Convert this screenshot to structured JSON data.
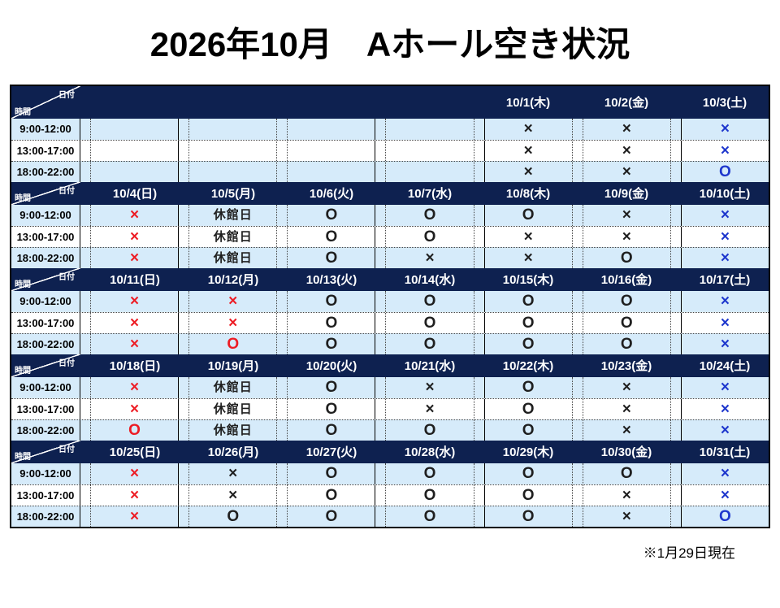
{
  "page": {
    "title": "2026年10月　Aホール空き状況",
    "footer_note": "※1月29日現在"
  },
  "corner": {
    "date_label": "日付",
    "time_label": "時間"
  },
  "time_slots": [
    "9:00-12:00",
    "13:00-17:00",
    "18:00-22:00"
  ],
  "symbols": {
    "unavailable": "×",
    "available": "O",
    "closed": "休館日"
  },
  "colors": {
    "header_navy": "#0e2150",
    "row_highlight": "#d6ebfa",
    "mark_black": "#1f1f1f",
    "mark_red": "#ed1c24",
    "mark_blue": "#1e37cd"
  },
  "weeks": [
    {
      "dates": [
        "",
        "",
        "",
        "",
        "10/1(木)",
        "10/2(金)",
        "10/3(土)"
      ],
      "rows": [
        [
          {
            "v": "",
            "c": "black"
          },
          {
            "v": "",
            "c": "black"
          },
          {
            "v": "",
            "c": "black"
          },
          {
            "v": "",
            "c": "black"
          },
          {
            "v": "×",
            "c": "black"
          },
          {
            "v": "×",
            "c": "black"
          },
          {
            "v": "×",
            "c": "blue"
          }
        ],
        [
          {
            "v": "",
            "c": "black"
          },
          {
            "v": "",
            "c": "black"
          },
          {
            "v": "",
            "c": "black"
          },
          {
            "v": "",
            "c": "black"
          },
          {
            "v": "×",
            "c": "black"
          },
          {
            "v": "×",
            "c": "black"
          },
          {
            "v": "×",
            "c": "blue"
          }
        ],
        [
          {
            "v": "",
            "c": "black"
          },
          {
            "v": "",
            "c": "black"
          },
          {
            "v": "",
            "c": "black"
          },
          {
            "v": "",
            "c": "black"
          },
          {
            "v": "×",
            "c": "black"
          },
          {
            "v": "×",
            "c": "black"
          },
          {
            "v": "O",
            "c": "blue"
          }
        ]
      ]
    },
    {
      "dates": [
        "10/4(日)",
        "10/5(月)",
        "10/6(火)",
        "10/7(水)",
        "10/8(木)",
        "10/9(金)",
        "10/10(土)"
      ],
      "rows": [
        [
          {
            "v": "×",
            "c": "red"
          },
          {
            "v": "休館日",
            "c": "black"
          },
          {
            "v": "O",
            "c": "black"
          },
          {
            "v": "O",
            "c": "black"
          },
          {
            "v": "O",
            "c": "black"
          },
          {
            "v": "×",
            "c": "black"
          },
          {
            "v": "×",
            "c": "blue"
          }
        ],
        [
          {
            "v": "×",
            "c": "red"
          },
          {
            "v": "休館日",
            "c": "black"
          },
          {
            "v": "O",
            "c": "black"
          },
          {
            "v": "O",
            "c": "black"
          },
          {
            "v": "×",
            "c": "black"
          },
          {
            "v": "×",
            "c": "black"
          },
          {
            "v": "×",
            "c": "blue"
          }
        ],
        [
          {
            "v": "×",
            "c": "red"
          },
          {
            "v": "休館日",
            "c": "black"
          },
          {
            "v": "O",
            "c": "black"
          },
          {
            "v": "×",
            "c": "black"
          },
          {
            "v": "×",
            "c": "black"
          },
          {
            "v": "O",
            "c": "black"
          },
          {
            "v": "×",
            "c": "blue"
          }
        ]
      ]
    },
    {
      "dates": [
        "10/11(日)",
        "10/12(月)",
        "10/13(火)",
        "10/14(水)",
        "10/15(木)",
        "10/16(金)",
        "10/17(土)"
      ],
      "rows": [
        [
          {
            "v": "×",
            "c": "red"
          },
          {
            "v": "×",
            "c": "red"
          },
          {
            "v": "O",
            "c": "black"
          },
          {
            "v": "O",
            "c": "black"
          },
          {
            "v": "O",
            "c": "black"
          },
          {
            "v": "O",
            "c": "black"
          },
          {
            "v": "×",
            "c": "blue"
          }
        ],
        [
          {
            "v": "×",
            "c": "red"
          },
          {
            "v": "×",
            "c": "red"
          },
          {
            "v": "O",
            "c": "black"
          },
          {
            "v": "O",
            "c": "black"
          },
          {
            "v": "O",
            "c": "black"
          },
          {
            "v": "O",
            "c": "black"
          },
          {
            "v": "×",
            "c": "blue"
          }
        ],
        [
          {
            "v": "×",
            "c": "red"
          },
          {
            "v": "O",
            "c": "red"
          },
          {
            "v": "O",
            "c": "black"
          },
          {
            "v": "O",
            "c": "black"
          },
          {
            "v": "O",
            "c": "black"
          },
          {
            "v": "O",
            "c": "black"
          },
          {
            "v": "×",
            "c": "blue"
          }
        ]
      ]
    },
    {
      "dates": [
        "10/18(日)",
        "10/19(月)",
        "10/20(火)",
        "10/21(水)",
        "10/22(木)",
        "10/23(金)",
        "10/24(土)"
      ],
      "rows": [
        [
          {
            "v": "×",
            "c": "red"
          },
          {
            "v": "休館日",
            "c": "black"
          },
          {
            "v": "O",
            "c": "black"
          },
          {
            "v": "×",
            "c": "black"
          },
          {
            "v": "O",
            "c": "black"
          },
          {
            "v": "×",
            "c": "black"
          },
          {
            "v": "×",
            "c": "blue"
          }
        ],
        [
          {
            "v": "×",
            "c": "red"
          },
          {
            "v": "休館日",
            "c": "black"
          },
          {
            "v": "O",
            "c": "black"
          },
          {
            "v": "×",
            "c": "black"
          },
          {
            "v": "O",
            "c": "black"
          },
          {
            "v": "×",
            "c": "black"
          },
          {
            "v": "×",
            "c": "blue"
          }
        ],
        [
          {
            "v": "O",
            "c": "red"
          },
          {
            "v": "休館日",
            "c": "black"
          },
          {
            "v": "O",
            "c": "black"
          },
          {
            "v": "O",
            "c": "black"
          },
          {
            "v": "O",
            "c": "black"
          },
          {
            "v": "×",
            "c": "black"
          },
          {
            "v": "×",
            "c": "blue"
          }
        ]
      ]
    },
    {
      "dates": [
        "10/25(日)",
        "10/26(月)",
        "10/27(火)",
        "10/28(水)",
        "10/29(木)",
        "10/30(金)",
        "10/31(土)"
      ],
      "rows": [
        [
          {
            "v": "×",
            "c": "red"
          },
          {
            "v": "×",
            "c": "black"
          },
          {
            "v": "O",
            "c": "black"
          },
          {
            "v": "O",
            "c": "black"
          },
          {
            "v": "O",
            "c": "black"
          },
          {
            "v": "O",
            "c": "black"
          },
          {
            "v": "×",
            "c": "blue"
          }
        ],
        [
          {
            "v": "×",
            "c": "red"
          },
          {
            "v": "×",
            "c": "black"
          },
          {
            "v": "O",
            "c": "black"
          },
          {
            "v": "O",
            "c": "black"
          },
          {
            "v": "O",
            "c": "black"
          },
          {
            "v": "×",
            "c": "black"
          },
          {
            "v": "×",
            "c": "blue"
          }
        ],
        [
          {
            "v": "×",
            "c": "red"
          },
          {
            "v": "O",
            "c": "black"
          },
          {
            "v": "O",
            "c": "black"
          },
          {
            "v": "O",
            "c": "black"
          },
          {
            "v": "O",
            "c": "black"
          },
          {
            "v": "×",
            "c": "black"
          },
          {
            "v": "O",
            "c": "blue"
          }
        ]
      ]
    }
  ]
}
